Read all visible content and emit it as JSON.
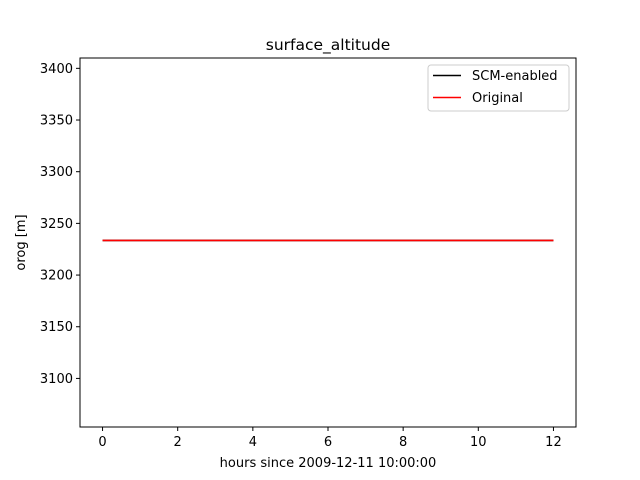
{
  "chart_data": {
    "type": "line",
    "title": "surface_altitude",
    "xlabel": "hours since 2009-12-11 10:00:00",
    "ylabel": "orog [m]",
    "xlim": [
      -0.6,
      12.6
    ],
    "ylim": [
      3053,
      3410
    ],
    "xticks": [
      0,
      2,
      4,
      6,
      8,
      10,
      12
    ],
    "yticks": [
      3100,
      3150,
      3200,
      3250,
      3300,
      3350,
      3400
    ],
    "grid": false,
    "legend_position": "top-right",
    "series": [
      {
        "name": "SCM-enabled",
        "color": "#000000",
        "x": [
          0,
          12
        ],
        "y": [
          3233.5,
          3233.5
        ]
      },
      {
        "name": "Original",
        "color": "#ff0000",
        "x": [
          0,
          12
        ],
        "y": [
          3233.5,
          3233.5
        ]
      }
    ]
  }
}
